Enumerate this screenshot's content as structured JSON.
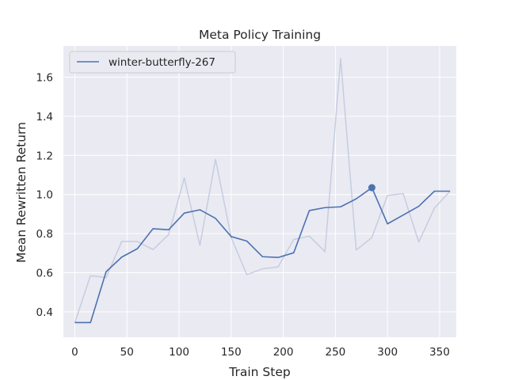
{
  "chart_data": {
    "type": "line",
    "title": "Meta Policy Training",
    "xlabel": "Train Step",
    "ylabel": "Mean Rewritten Return",
    "xlim": [
      -11,
      366
    ],
    "ylim": [
      0.27,
      1.76
    ],
    "xticks": [
      0,
      50,
      100,
      150,
      200,
      250,
      300,
      350
    ],
    "yticks": [
      0.4,
      0.6,
      0.8,
      1.0,
      1.2,
      1.4,
      1.6
    ],
    "grid": true,
    "legend_position": "top-left",
    "colors": {
      "smoothed": "#4c72b0",
      "raw": "#c5cde0",
      "background": "#eaeaf2",
      "grid": "#ffffff"
    },
    "series": [
      {
        "name": "winter-butterfly-267",
        "style": "smoothed",
        "x": [
          0,
          15,
          30,
          45,
          60,
          75,
          90,
          105,
          120,
          135,
          150,
          165,
          180,
          195,
          210,
          225,
          240,
          255,
          270,
          285,
          300,
          315,
          330,
          345,
          360
        ],
        "values": [
          0.345,
          0.345,
          0.605,
          0.68,
          0.723,
          0.825,
          0.82,
          0.905,
          0.922,
          0.878,
          0.785,
          0.762,
          0.682,
          0.678,
          0.702,
          0.918,
          0.933,
          0.937,
          0.978,
          1.035,
          0.85,
          0.895,
          0.94,
          1.017,
          1.017
        ]
      },
      {
        "style": "raw",
        "x": [
          0,
          15,
          30,
          45,
          60,
          75,
          90,
          105,
          120,
          135,
          150,
          165,
          180,
          195,
          210,
          225,
          240,
          255,
          270,
          285,
          300,
          315,
          330,
          345,
          360
        ],
        "values": [
          0.345,
          0.585,
          0.575,
          0.76,
          0.76,
          0.718,
          0.795,
          1.085,
          0.74,
          1.18,
          0.78,
          0.59,
          0.62,
          0.63,
          0.77,
          0.787,
          0.708,
          1.695,
          0.716,
          0.78,
          0.995,
          1.005,
          0.757,
          0.93,
          1.017
        ]
      }
    ],
    "highlight_point": {
      "x": 285,
      "y": 1.035
    }
  }
}
